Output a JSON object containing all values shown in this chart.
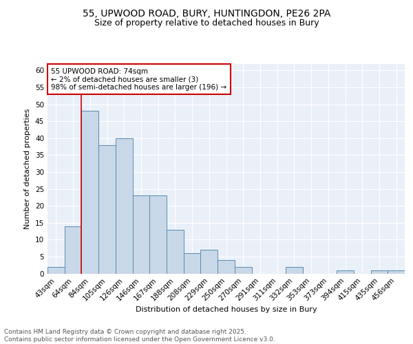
{
  "title_line1": "55, UPWOOD ROAD, BURY, HUNTINGDON, PE26 2PA",
  "title_line2": "Size of property relative to detached houses in Bury",
  "xlabel": "Distribution of detached houses by size in Bury",
  "ylabel": "Number of detached properties",
  "categories": [
    "43sqm",
    "64sqm",
    "84sqm",
    "105sqm",
    "126sqm",
    "146sqm",
    "167sqm",
    "188sqm",
    "208sqm",
    "229sqm",
    "250sqm",
    "270sqm",
    "291sqm",
    "311sqm",
    "332sqm",
    "353sqm",
    "373sqm",
    "394sqm",
    "415sqm",
    "435sqm",
    "456sqm"
  ],
  "values": [
    2,
    14,
    48,
    38,
    40,
    23,
    23,
    13,
    6,
    7,
    4,
    2,
    0,
    0,
    2,
    0,
    0,
    1,
    0,
    1,
    1
  ],
  "bar_color": "#c8d8e8",
  "bar_edge_color": "#5a8ab0",
  "background_color": "#eaf0f8",
  "grid_color": "#ffffff",
  "annotation_text": "55 UPWOOD ROAD: 74sqm\n← 2% of detached houses are smaller (3)\n98% of semi-detached houses are larger (196) →",
  "annotation_box_color": "#ffffff",
  "annotation_box_edge_color": "#cc0000",
  "vline_x": 1.5,
  "vline_color": "#cc0000",
  "ylim": [
    0,
    62
  ],
  "yticks": [
    0,
    5,
    10,
    15,
    20,
    25,
    30,
    35,
    40,
    45,
    50,
    55,
    60
  ],
  "footer_text": "Contains HM Land Registry data © Crown copyright and database right 2025.\nContains public sector information licensed under the Open Government Licence v3.0.",
  "title_fontsize": 10,
  "subtitle_fontsize": 9,
  "axis_label_fontsize": 8,
  "tick_fontsize": 7.5,
  "footer_fontsize": 6.5,
  "annotation_fontsize": 7.5
}
